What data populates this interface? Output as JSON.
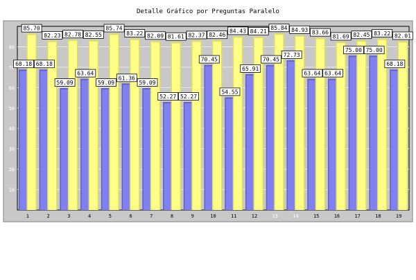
{
  "chart_data": {
    "type": "bar",
    "title": "Detalle Gráfico por Preguntas Paralelo",
    "categories": [
      "1",
      "2",
      "3",
      "4",
      "5",
      "6",
      "7",
      "8",
      "9",
      "10",
      "11",
      "12",
      "13",
      "14",
      "15",
      "16",
      "17",
      "18",
      "19"
    ],
    "series": [
      {
        "color": "#8080f0",
        "values": [
          68.18,
          68.18,
          59.09,
          63.64,
          59.09,
          61.36,
          59.09,
          52.27,
          52.27,
          70.45,
          54.55,
          65.91,
          70.45,
          72.73,
          63.64,
          63.64,
          75.0,
          75.0,
          68.18
        ]
      },
      {
        "color": "#ffff88",
        "values": [
          85.7,
          82.23,
          82.78,
          82.55,
          85.74,
          83.22,
          82.09,
          81.61,
          82.37,
          82.46,
          84.43,
          84.21,
          85.84,
          84.93,
          83.66,
          81.69,
          82.45,
          83.22,
          82.01
        ]
      }
    ],
    "ylim": [
      0,
      90
    ],
    "yticks": [
      10,
      20,
      30,
      40,
      50,
      60,
      70,
      80
    ],
    "grid": true,
    "xlabel_colors_white": [
      "13",
      "14"
    ]
  }
}
